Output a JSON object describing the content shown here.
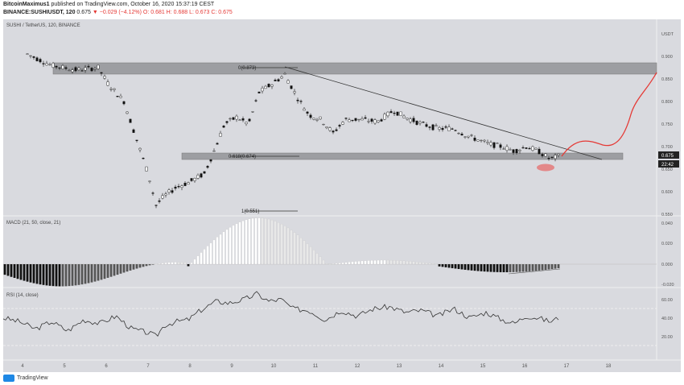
{
  "header": {
    "author": "BitcoinMaximus1",
    "published": "published on TradingView.com, October 16, 2020 15:37:19 CEST",
    "symbol": "BINANCE:SUSHIUSDT, 120",
    "price": "0.675",
    "change": "▼ −0.029 (−4.12%)",
    "ohlc": "O: 0.681  H: 0.688  L: 0.673  C: 0.675"
  },
  "pane_label": "SUSHI / TetherUS, 120, BINANCE",
  "y_axis": {
    "unit": "USDT",
    "ticks": [
      "0.900",
      "0.850",
      "0.800",
      "0.750",
      "0.700",
      "0.650",
      "0.600",
      "0.550"
    ],
    "price_tag": "0.675",
    "time_tag": "22:42"
  },
  "fib_labels": {
    "top": "0(0.873)",
    "mid": "0.618(0.674)",
    "low": "1(0.551)"
  },
  "macd": {
    "label": "MACD (21, 50, close, 21)",
    "ticks": [
      "0.040",
      "0.020",
      "0.000",
      "-0.020"
    ]
  },
  "rsi": {
    "label": "RSI (14, close)",
    "ticks": [
      "60.00",
      "40.00",
      "20.00"
    ]
  },
  "x_axis": [
    "4",
    "5",
    "6",
    "7",
    "8",
    "9",
    "10",
    "11",
    "12",
    "13",
    "14",
    "15",
    "16",
    "17",
    "18"
  ],
  "footer": {
    "brand": "TradingView"
  },
  "colors": {
    "resistance_band": "#8a8a8e",
    "projection": "#e53935",
    "trendline": "#333333"
  }
}
